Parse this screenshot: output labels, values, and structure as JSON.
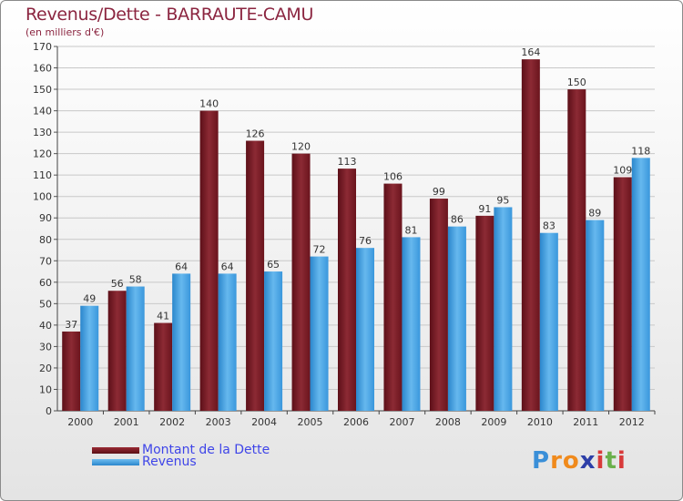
{
  "chart_data": {
    "type": "bar",
    "title": "Revenus/Dette - BARRAUTE-CAMU",
    "subtitle": "(en milliers d'€)",
    "categories": [
      "2000",
      "2001",
      "2002",
      "2003",
      "2004",
      "2005",
      "2006",
      "2007",
      "2008",
      "2009",
      "2010",
      "2011",
      "2012"
    ],
    "series": [
      {
        "name": "Montant de la Dette",
        "color": "#7a1a24",
        "values": [
          37,
          56,
          41,
          140,
          126,
          120,
          113,
          106,
          99,
          91,
          164,
          150,
          109
        ]
      },
      {
        "name": "Revenus",
        "color": "#3d9ee2",
        "values": [
          49,
          58,
          64,
          64,
          65,
          72,
          76,
          81,
          86,
          95,
          83,
          89,
          118
        ]
      }
    ],
    "ylim": [
      0,
      170
    ],
    "yticks": [
      0,
      10,
      20,
      30,
      40,
      50,
      60,
      70,
      80,
      90,
      100,
      110,
      120,
      130,
      140,
      150,
      160,
      170
    ],
    "grid": true,
    "legend": "bottom-left"
  },
  "legend": {
    "dette_label": "Montant de la Dette",
    "revenus_label": "Revenus"
  },
  "logo": {
    "letters": [
      "P",
      "r",
      "o",
      "x",
      "i",
      "t",
      "i"
    ],
    "colors": [
      "#3a8fd8",
      "#f08a1c",
      "#f08a1c",
      "#2d3fa8",
      "#d83a3a",
      "#6ab04c",
      "#d83a3a"
    ]
  }
}
